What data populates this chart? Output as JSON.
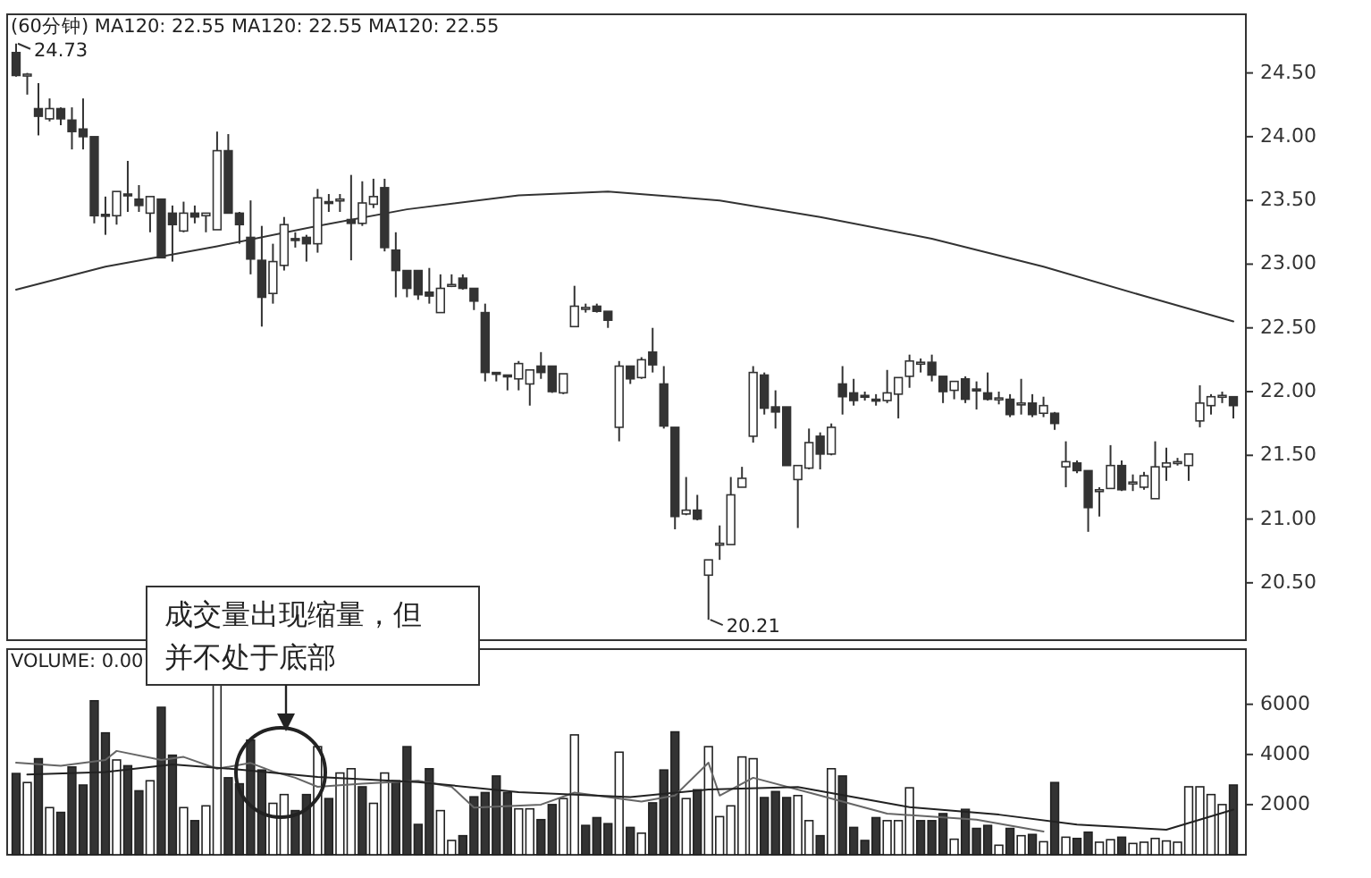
{
  "chart_data": [
    {
      "type": "candlestick",
      "title": "(60分钟) MA120: 22.55 MA120: 22.55 MA120: 22.55",
      "categories": [
        null,
        null,
        null,
        null,
        null,
        null,
        null,
        null,
        null,
        null,
        null,
        null,
        null,
        null,
        null,
        null,
        null,
        null,
        null,
        null,
        null,
        null,
        null,
        null,
        null,
        null,
        null,
        null,
        null,
        null,
        null,
        null,
        null,
        null,
        null,
        null,
        null,
        null,
        null,
        null,
        null,
        null,
        null,
        null,
        null,
        null,
        null,
        null,
        null,
        null,
        null,
        null,
        null,
        null,
        null,
        null,
        null,
        null,
        null,
        null,
        null,
        null,
        null,
        null,
        null,
        null,
        null,
        null,
        null,
        null,
        null,
        null,
        null,
        null,
        null,
        null,
        null,
        null,
        null,
        null,
        null,
        null,
        null,
        null,
        null,
        null,
        null,
        null,
        null,
        null,
        null,
        null,
        null,
        null,
        null,
        null,
        null,
        null,
        null,
        null,
        null,
        null,
        null,
        null,
        null,
        null,
        null,
        null,
        null,
        null
      ],
      "ohlc": [
        [
          24.66,
          24.73,
          24.47,
          24.48
        ],
        [
          24.48,
          24.5,
          24.33,
          24.49
        ],
        [
          24.22,
          24.42,
          24.01,
          24.16
        ],
        [
          24.14,
          24.3,
          24.12,
          24.22
        ],
        [
          24.22,
          24.23,
          24.09,
          24.14
        ],
        [
          24.13,
          24.23,
          23.9,
          24.04
        ],
        [
          24.06,
          24.3,
          23.9,
          24.0
        ],
        [
          24.0,
          24.0,
          23.32,
          23.38
        ],
        [
          23.39,
          23.53,
          23.23,
          23.38
        ],
        [
          23.38,
          23.57,
          23.31,
          23.57
        ],
        [
          23.55,
          23.81,
          23.41,
          23.54
        ],
        [
          23.51,
          23.62,
          23.41,
          23.46
        ],
        [
          23.4,
          23.53,
          23.25,
          23.53
        ],
        [
          23.51,
          23.51,
          23.05,
          23.05
        ],
        [
          23.4,
          23.46,
          23.02,
          23.31
        ],
        [
          23.26,
          23.49,
          23.25,
          23.4
        ],
        [
          23.4,
          23.46,
          23.32,
          23.37
        ],
        [
          23.38,
          23.4,
          23.25,
          23.4
        ],
        [
          23.27,
          24.04,
          23.27,
          23.89
        ],
        [
          23.89,
          24.02,
          23.4,
          23.4
        ],
        [
          23.4,
          23.41,
          23.16,
          23.31
        ],
        [
          23.21,
          23.5,
          22.92,
          23.04
        ],
        [
          23.03,
          23.3,
          22.51,
          22.74
        ],
        [
          22.77,
          23.16,
          22.69,
          23.02
        ],
        [
          22.99,
          23.37,
          22.95,
          23.31
        ],
        [
          23.2,
          23.25,
          23.13,
          23.19
        ],
        [
          23.21,
          23.23,
          23.02,
          23.16
        ],
        [
          23.16,
          23.59,
          23.09,
          23.52
        ],
        [
          23.49,
          23.55,
          23.41,
          23.48
        ],
        [
          23.5,
          23.55,
          23.41,
          23.51
        ],
        [
          23.35,
          23.7,
          23.03,
          23.32
        ],
        [
          23.32,
          23.65,
          23.3,
          23.48
        ],
        [
          23.47,
          23.67,
          23.44,
          23.53
        ],
        [
          23.6,
          23.67,
          23.1,
          23.13
        ],
        [
          23.11,
          23.25,
          22.74,
          22.95
        ],
        [
          22.95,
          22.95,
          22.74,
          22.81
        ],
        [
          22.95,
          22.95,
          22.72,
          22.76
        ],
        [
          22.78,
          22.97,
          22.69,
          22.75
        ],
        [
          22.62,
          22.92,
          22.62,
          22.81
        ],
        [
          22.83,
          22.92,
          22.82,
          22.84
        ],
        [
          22.89,
          22.92,
          22.8,
          22.81
        ],
        [
          22.81,
          22.81,
          22.64,
          22.71
        ],
        [
          22.62,
          22.69,
          22.08,
          22.15
        ],
        [
          22.15,
          22.15,
          22.08,
          22.14
        ],
        [
          22.13,
          22.13,
          22.01,
          22.12
        ],
        [
          22.1,
          22.24,
          22.01,
          22.22
        ],
        [
          22.06,
          22.17,
          21.89,
          22.17
        ],
        [
          22.2,
          22.31,
          22.1,
          22.15
        ],
        [
          22.2,
          22.2,
          21.99,
          22.0
        ],
        [
          21.99,
          22.14,
          21.98,
          22.14
        ],
        [
          22.51,
          22.83,
          22.51,
          22.67
        ],
        [
          22.65,
          22.69,
          22.62,
          22.66
        ],
        [
          22.67,
          22.69,
          22.62,
          22.63
        ],
        [
          22.63,
          22.63,
          22.5,
          22.56
        ],
        [
          21.72,
          22.24,
          21.61,
          22.2
        ],
        [
          22.2,
          22.2,
          22.06,
          22.1
        ],
        [
          22.11,
          22.27,
          22.1,
          22.25
        ],
        [
          22.31,
          22.5,
          22.15,
          22.21
        ],
        [
          22.06,
          22.2,
          21.71,
          21.73
        ],
        [
          21.72,
          21.72,
          20.92,
          21.02
        ],
        [
          21.04,
          21.33,
          21.03,
          21.07
        ],
        [
          21.07,
          21.19,
          20.99,
          21.0
        ],
        [
          20.56,
          20.68,
          20.21,
          20.68
        ],
        [
          20.8,
          20.95,
          20.68,
          20.81
        ],
        [
          20.8,
          21.33,
          20.8,
          21.19
        ],
        [
          21.25,
          21.41,
          21.25,
          21.32
        ],
        [
          21.65,
          22.2,
          21.6,
          22.15
        ],
        [
          22.13,
          22.15,
          21.82,
          21.87
        ],
        [
          21.88,
          22.01,
          21.71,
          21.84
        ],
        [
          21.88,
          21.88,
          21.42,
          21.42
        ],
        [
          21.31,
          21.42,
          20.93,
          21.42
        ],
        [
          21.4,
          21.71,
          21.39,
          21.6
        ],
        [
          21.65,
          21.68,
          21.39,
          21.51
        ],
        [
          21.51,
          21.75,
          21.5,
          21.72
        ],
        [
          22.06,
          22.2,
          21.82,
          21.96
        ],
        [
          21.99,
          22.1,
          21.89,
          21.93
        ],
        [
          21.97,
          22.0,
          21.93,
          21.96
        ],
        [
          21.94,
          21.98,
          21.89,
          21.93
        ],
        [
          21.93,
          22.17,
          21.91,
          21.99
        ],
        [
          21.98,
          22.11,
          21.79,
          22.11
        ],
        [
          22.12,
          22.29,
          22.03,
          22.24
        ],
        [
          22.22,
          22.26,
          22.15,
          22.23
        ],
        [
          22.23,
          22.29,
          22.08,
          22.13
        ],
        [
          22.12,
          22.12,
          21.91,
          22.0
        ],
        [
          22.01,
          22.08,
          21.94,
          22.08
        ],
        [
          22.1,
          22.12,
          21.91,
          21.94
        ],
        [
          22.02,
          22.08,
          21.86,
          22.01
        ],
        [
          21.99,
          22.15,
          21.93,
          21.94
        ],
        [
          21.94,
          22.0,
          21.9,
          21.95
        ],
        [
          21.94,
          21.98,
          21.8,
          21.82
        ],
        [
          21.9,
          22.1,
          21.82,
          21.91
        ],
        [
          21.91,
          21.98,
          21.8,
          21.82
        ],
        [
          21.83,
          21.96,
          21.8,
          21.89
        ],
        [
          21.83,
          21.84,
          21.7,
          21.75
        ],
        [
          21.41,
          21.61,
          21.25,
          21.45
        ],
        [
          21.44,
          21.46,
          21.36,
          21.38
        ],
        [
          21.38,
          21.38,
          20.9,
          21.09
        ],
        [
          21.22,
          21.25,
          21.02,
          21.23
        ],
        [
          21.24,
          21.58,
          21.24,
          21.42
        ],
        [
          21.42,
          21.46,
          21.22,
          21.23
        ],
        [
          21.28,
          21.35,
          21.22,
          21.29
        ],
        [
          21.25,
          21.37,
          21.23,
          21.34
        ],
        [
          21.16,
          21.61,
          21.16,
          21.41
        ],
        [
          21.41,
          21.56,
          21.3,
          21.44
        ],
        [
          21.44,
          21.48,
          21.42,
          21.45
        ],
        [
          21.42,
          21.51,
          21.3,
          21.51
        ],
        [
          21.77,
          22.05,
          21.72,
          21.91
        ],
        [
          21.89,
          21.98,
          21.82,
          21.96
        ],
        [
          21.96,
          22.0,
          21.91,
          21.97
        ],
        [
          21.96,
          21.96,
          21.79,
          21.89
        ]
      ],
      "series": [
        {
          "type": "line",
          "color": "#333333",
          "values": [
            22.8,
            null,
            null,
            null,
            null,
            null,
            null,
            null,
            22.98,
            null,
            null,
            null,
            null,
            null,
            null,
            null,
            null,
            null,
            23.14,
            null,
            null,
            null,
            null,
            null,
            null,
            null,
            null,
            23.3,
            null,
            null,
            null,
            null,
            null,
            null,
            null,
            23.43,
            null,
            null,
            null,
            null,
            null,
            null,
            null,
            null,
            null,
            23.54,
            null,
            null,
            null,
            null,
            null,
            null,
            null,
            23.57,
            null,
            null,
            null,
            null,
            null,
            null,
            null,
            null,
            null,
            23.5,
            null,
            null,
            null,
            null,
            null,
            null,
            null,
            null,
            23.37,
            null,
            null,
            null,
            null,
            null,
            null,
            null,
            null,
            null,
            23.2,
            null,
            null,
            null,
            null,
            null,
            null,
            null,
            null,
            null,
            22.98,
            null,
            null,
            null,
            null,
            null,
            null,
            null,
            null,
            22.75,
            null,
            null,
            null,
            null,
            null,
            null,
            null,
            22.55
          ]
        }
      ],
      "ylim": [
        20.05,
        24.96
      ],
      "yticks": [
        {
          "value": 20.5,
          "label": "20.50"
        },
        {
          "value": 21,
          "label": "21.00"
        },
        {
          "value": 21.5,
          "label": "21.50"
        },
        {
          "value": 22,
          "label": "22.00"
        },
        {
          "value": 22.5,
          "label": "22.50"
        },
        {
          "value": 23,
          "label": "23.00"
        },
        {
          "value": 23.5,
          "label": "23.50"
        },
        {
          "value": 24,
          "label": "24.00"
        },
        {
          "value": 24.5,
          "label": "24.50"
        }
      ],
      "annotations": [
        "24.73",
        "20.21"
      ]
    },
    {
      "type": "bar",
      "title": "VOLUME: 0.00",
      "categories": [
        null,
        null,
        null,
        null,
        null,
        null,
        null,
        null,
        null,
        null,
        null,
        null,
        null,
        null,
        null,
        null,
        null,
        null,
        null,
        null,
        null,
        null,
        null,
        null,
        null,
        null,
        null,
        null,
        null,
        null,
        null,
        null,
        null,
        null,
        null,
        null,
        null,
        null,
        null,
        null,
        null,
        null,
        null,
        null,
        null,
        null,
        null,
        null,
        null,
        null,
        null,
        null,
        null,
        null,
        null,
        null,
        null,
        null,
        null,
        null,
        null,
        null,
        null,
        null,
        null,
        null,
        null,
        null,
        null,
        null,
        null,
        null,
        null,
        null,
        null,
        null,
        null,
        null,
        null,
        null,
        null,
        null,
        null,
        null,
        null,
        null,
        null,
        null,
        null,
        null,
        null,
        null,
        null,
        null,
        null,
        null,
        null,
        null,
        null,
        null,
        null,
        null,
        null,
        null,
        null,
        null,
        null,
        null,
        null,
        null
      ],
      "series": [
        {
          "type": "bar",
          "values": [
            3240,
            2880,
            3830,
            1880,
            1690,
            3500,
            2780,
            6140,
            4860,
            3780,
            3550,
            2550,
            2950,
            5880,
            3970,
            1880,
            1360,
            1950,
            6900,
            3070,
            2830,
            4570,
            3380,
            2050,
            2400,
            1760,
            2400,
            4310,
            2240,
            3260,
            3430,
            2710,
            2050,
            3260,
            2950,
            4310,
            1210,
            3430,
            1760,
            570,
            760,
            2310,
            2480,
            3140,
            2480,
            1830,
            1830,
            1400,
            2000,
            2240,
            4780,
            1170,
            1480,
            1240,
            4090,
            1090,
            860,
            2070,
            3380,
            4900,
            2240,
            2590,
            4310,
            1520,
            1950,
            3900,
            3830,
            2280,
            2520,
            2280,
            2360,
            1360,
            760,
            3430,
            3140,
            1090,
            570,
            1480,
            1360,
            1360,
            2670,
            1360,
            1360,
            1640,
            620,
            1810,
            1050,
            1170,
            380,
            1050,
            760,
            810,
            520,
            2880,
            700,
            650,
            900,
            500,
            600,
            700,
            450,
            500,
            650,
            550,
            500,
            2710,
            2710,
            2400,
            2000,
            2780
          ],
          "colors": [
            "#333333",
            "#ffffff",
            "#333333",
            "#ffffff",
            "#333333",
            "#333333",
            "#333333",
            "#333333",
            "#333333",
            "#ffffff",
            "#333333",
            "#333333",
            "#ffffff",
            "#333333",
            "#333333",
            "#ffffff",
            "#333333",
            "#ffffff",
            "#ffffff",
            "#333333",
            "#333333",
            "#333333",
            "#333333",
            "#ffffff",
            "#ffffff",
            "#333333",
            "#333333",
            "#ffffff",
            "#333333",
            "#ffffff",
            "#ffffff",
            "#333333",
            "#ffffff",
            "#ffffff",
            "#333333",
            "#333333",
            "#333333",
            "#333333",
            "#ffffff",
            "#ffffff",
            "#333333",
            "#333333",
            "#333333",
            "#333333",
            "#333333",
            "#ffffff",
            "#ffffff",
            "#333333",
            "#333333",
            "#ffffff",
            "#ffffff",
            "#333333",
            "#333333",
            "#333333",
            "#ffffff",
            "#333333",
            "#ffffff",
            "#333333",
            "#333333",
            "#333333",
            "#ffffff",
            "#333333",
            "#ffffff",
            "#ffffff",
            "#ffffff",
            "#ffffff",
            "#ffffff",
            "#333333",
            "#333333",
            "#333333",
            "#ffffff",
            "#ffffff",
            "#333333",
            "#ffffff",
            "#333333",
            "#333333",
            "#333333",
            "#333333",
            "#ffffff",
            "#ffffff",
            "#ffffff",
            "#333333",
            "#333333",
            "#333333",
            "#ffffff",
            "#333333",
            "#333333",
            "#333333",
            "#ffffff",
            "#333333",
            "#ffffff",
            "#333333",
            "#ffffff",
            "#333333",
            "#ffffff",
            "#333333",
            "#333333",
            "#ffffff",
            "#ffffff",
            "#333333",
            "#ffffff",
            "#ffffff",
            "#ffffff",
            "#ffffff",
            "#ffffff",
            "#ffffff",
            "#ffffff",
            "#ffffff",
            "#ffffff",
            "#333333"
          ]
        },
        {
          "type": "line",
          "color": "#666666",
          "values": [
            3670,
            null,
            null,
            null,
            3550,
            null,
            null,
            null,
            3780,
            4140,
            null,
            null,
            null,
            3780,
            null,
            3900,
            null,
            null,
            3430,
            null,
            null,
            3660,
            null,
            3320,
            null,
            3070,
            null,
            2710,
            null,
            null,
            null,
            2830,
            null,
            null,
            null,
            null,
            2950,
            null,
            null,
            2710,
            null,
            1880,
            null,
            null,
            null,
            null,
            null,
            2000,
            null,
            null,
            2480,
            null,
            null,
            null,
            null,
            null,
            2120,
            null,
            null,
            2360,
            null,
            null,
            3670,
            2360,
            null,
            null,
            3070,
            null,
            null,
            null,
            null,
            null,
            2360,
            null,
            null,
            null,
            null,
            null,
            1640,
            null,
            null,
            null,
            null,
            null,
            null,
            null,
            1400,
            null,
            null,
            null,
            null,
            null,
            930,
            null,
            null,
            null,
            null,
            null,
            null,
            null,
            null,
            null,
            null,
            null,
            null,
            null,
            null,
            null,
            null,
            null
          ]
        },
        {
          "type": "line",
          "color": "#222222",
          "values": [
            null,
            3200,
            null,
            null,
            null,
            null,
            null,
            null,
            3300,
            null,
            null,
            null,
            null,
            null,
            3600,
            null,
            null,
            null,
            null,
            null,
            3400,
            null,
            null,
            null,
            null,
            null,
            null,
            3100,
            null,
            null,
            null,
            null,
            null,
            null,
            null,
            null,
            2900,
            null,
            null,
            null,
            null,
            null,
            null,
            null,
            null,
            2500,
            null,
            null,
            null,
            null,
            null,
            null,
            null,
            null,
            null,
            2300,
            null,
            null,
            null,
            null,
            null,
            null,
            2600,
            null,
            null,
            null,
            null,
            null,
            null,
            null,
            2700,
            null,
            null,
            null,
            null,
            null,
            null,
            null,
            null,
            null,
            1900,
            null,
            null,
            null,
            null,
            null,
            null,
            null,
            1600,
            null,
            null,
            null,
            null,
            null,
            null,
            1200,
            null,
            null,
            null,
            null,
            null,
            null,
            null,
            1000,
            null,
            null,
            null,
            null,
            null,
            1800
          ]
        }
      ],
      "ylim": [
        0,
        8200
      ],
      "yticks": [
        2000,
        4000,
        6000
      ],
      "annotations": [
        "成交量出现缩量，但并不处于底部"
      ]
    }
  ]
}
